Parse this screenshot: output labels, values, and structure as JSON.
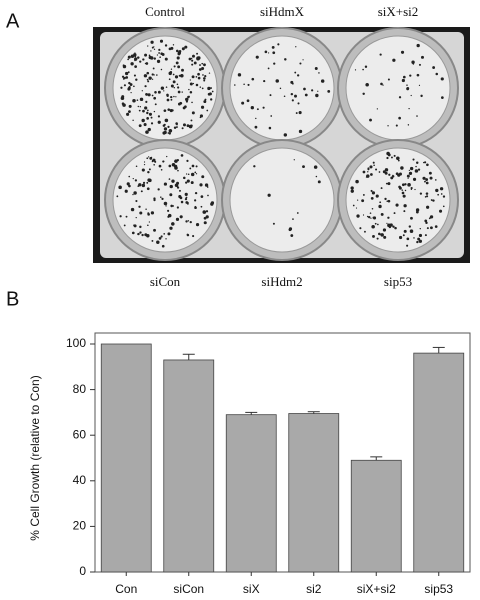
{
  "panels": {
    "a": "A",
    "b": "B"
  },
  "plate": {
    "top_labels": [
      "Control",
      "siHdmX",
      "siX+si2"
    ],
    "bottom_labels": [
      "siCon",
      "siHdm2",
      "sip53"
    ]
  },
  "chart_data": {
    "type": "bar",
    "ylabel": "% Cell Growth (relative to Con)",
    "categories": [
      "Con",
      "siCon",
      "siX",
      "si2",
      "siX+si2",
      "sip53"
    ],
    "values": [
      100,
      93,
      69,
      69.5,
      49,
      96
    ],
    "errors": [
      null,
      2.5,
      1,
      0.8,
      1.5,
      2.5
    ],
    "color": "#a9a9a9",
    "ylim": [
      0,
      100
    ],
    "yticks": [
      0,
      20,
      40,
      60,
      80,
      100
    ]
  }
}
